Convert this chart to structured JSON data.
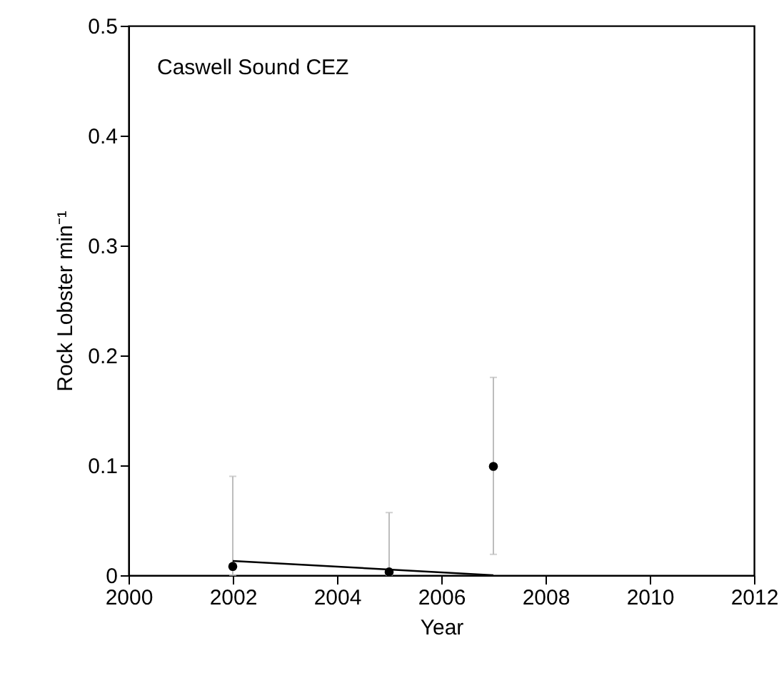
{
  "chart_data": {
    "type": "scatter",
    "annotations": [
      "Caswell Sound CEZ"
    ],
    "xlabel": "Year",
    "ylabel": "Rock Lobster min⁻¹",
    "xlim": [
      2000,
      2012
    ],
    "xticks": [
      2000,
      2002,
      2004,
      2006,
      2008,
      2010,
      2012
    ],
    "ylim": [
      0,
      0.5
    ],
    "yticks": [
      0,
      0.1,
      0.2,
      0.3,
      0.4,
      0.5
    ],
    "grid": false,
    "series": [
      {
        "marker": "circle",
        "color": "#000000",
        "x": [
          2002,
          2005,
          2007
        ],
        "values": [
          0.008,
          0.003,
          0.099
        ],
        "errors": [
          [
            0,
            0.09
          ],
          [
            0,
            0.057
          ],
          [
            0.019,
            0.18
          ]
        ]
      },
      {
        "type": "line",
        "color": "#000000",
        "x": [
          2002,
          2007
        ],
        "values": [
          0.013,
          0
        ]
      }
    ]
  }
}
